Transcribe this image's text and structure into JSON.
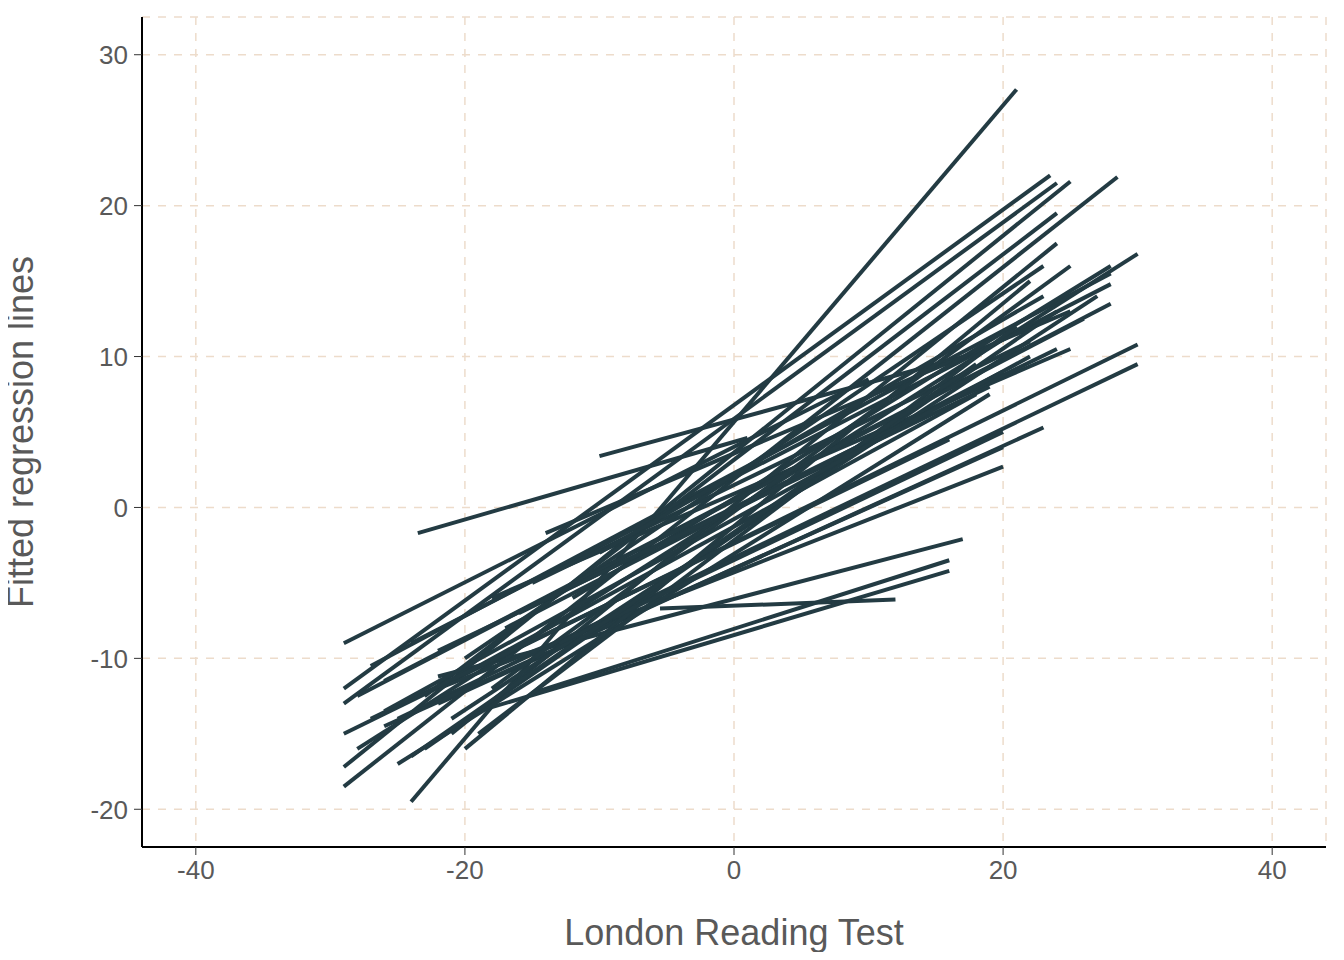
{
  "chart_data": {
    "type": "line",
    "x_label": "London Reading Test",
    "y_label": "Fitted regression lines",
    "xlim": [
      -44,
      44
    ],
    "xticks": [
      -40,
      -20,
      0,
      20,
      40
    ],
    "ylim": [
      -22.5,
      32.5
    ],
    "yticks": [
      -20,
      -10,
      0,
      10,
      20,
      30
    ],
    "grid": true,
    "color": "#233b43",
    "series": [
      {
        "x": [
          -24,
          21
        ],
        "values": [
          -19.5,
          27.7
        ]
      },
      {
        "x": [
          -23.5,
          1
        ],
        "values": [
          -1.7,
          4.6
        ]
      },
      {
        "x": [
          -10,
          18
        ],
        "values": [
          3.4,
          10.2
        ]
      },
      {
        "x": [
          -5.5,
          12
        ],
        "values": [
          -6.7,
          -6.1
        ]
      },
      {
        "x": [
          -22,
          17
        ],
        "values": [
          -11.2,
          -2.1
        ]
      },
      {
        "x": [
          -15,
          16
        ],
        "values": [
          -12.3,
          -3.5
        ]
      },
      {
        "x": [
          -19,
          16
        ],
        "values": [
          -13.5,
          -4.2
        ]
      },
      {
        "x": [
          -29,
          10
        ],
        "values": [
          -9,
          8.5
        ]
      },
      {
        "x": [
          -29,
          23.5
        ],
        "values": [
          -12,
          22
        ]
      },
      {
        "x": [
          -29,
          24
        ],
        "values": [
          -13,
          21.5
        ]
      },
      {
        "x": [
          -29,
          25
        ],
        "values": [
          -17.2,
          21.6
        ]
      },
      {
        "x": [
          -29,
          28.5
        ],
        "values": [
          -18.5,
          21.9
        ]
      },
      {
        "x": [
          -28,
          30
        ],
        "values": [
          -16,
          16.8
        ]
      },
      {
        "x": [
          -29,
          30
        ],
        "values": [
          -15,
          10.8
        ]
      },
      {
        "x": [
          -25,
          30
        ],
        "values": [
          -14,
          9.5
        ]
      },
      {
        "x": [
          -22,
          20
        ],
        "values": [
          -12,
          2.7
        ]
      },
      {
        "x": [
          -22,
          23
        ],
        "values": [
          -13,
          5.3
        ]
      },
      {
        "x": [
          -26,
          20
        ],
        "values": [
          -14.5,
          4
        ]
      },
      {
        "x": [
          -20,
          18
        ],
        "values": [
          -11,
          7.5
        ]
      },
      {
        "x": [
          -27,
          28
        ],
        "values": [
          -10.5,
          15.5
        ]
      },
      {
        "x": [
          -24,
          28
        ],
        "values": [
          -9,
          14.8
        ]
      },
      {
        "x": [
          -21,
          24
        ],
        "values": [
          -15,
          17.5
        ]
      },
      {
        "x": [
          -23,
          24
        ],
        "values": [
          -12.5,
          19.5
        ]
      },
      {
        "x": [
          -14,
          25
        ],
        "values": [
          -1.7,
          13
        ]
      },
      {
        "x": [
          -18,
          25
        ],
        "values": [
          -6,
          10.5
        ]
      },
      {
        "x": [
          -12,
          28
        ],
        "values": [
          -6,
          16
        ]
      },
      {
        "x": [
          -26,
          28
        ],
        "values": [
          -11.5,
          13.5
        ]
      },
      {
        "x": [
          -20,
          22
        ],
        "values": [
          -16,
          15
        ]
      },
      {
        "x": [
          -23,
          24
        ],
        "values": [
          -16,
          13
        ]
      },
      {
        "x": [
          -25,
          19
        ],
        "values": [
          -17,
          7.5
        ]
      },
      {
        "x": [
          -17,
          20
        ],
        "values": [
          -8,
          9
        ]
      },
      {
        "x": [
          -15,
          22
        ],
        "values": [
          -5,
          11
        ]
      },
      {
        "x": [
          -20,
          23
        ],
        "values": [
          -10,
          16
        ]
      },
      {
        "x": [
          -21,
          27
        ],
        "values": [
          -14,
          14
        ]
      },
      {
        "x": [
          -19,
          21
        ],
        "values": [
          -15,
          12
        ]
      },
      {
        "x": [
          -28,
          26
        ],
        "values": [
          -12.5,
          12.5
        ]
      },
      {
        "x": [
          -13,
          20
        ],
        "values": [
          -9,
          5
        ]
      },
      {
        "x": [
          -16,
          24
        ],
        "values": [
          -7,
          10.5
        ]
      },
      {
        "x": [
          -22,
          19
        ],
        "values": [
          -9.5,
          8
        ]
      },
      {
        "x": [
          -24,
          18
        ],
        "values": [
          -16.5,
          9.5
        ]
      },
      {
        "x": [
          -18,
          25
        ],
        "values": [
          -12,
          16
        ]
      },
      {
        "x": [
          -27,
          16
        ],
        "values": [
          -14,
          4.5
        ]
      },
      {
        "x": [
          -10,
          23
        ],
        "values": [
          -3,
          14
        ]
      },
      {
        "x": [
          -26,
          22
        ],
        "values": [
          -13.5,
          10
        ]
      }
    ]
  }
}
